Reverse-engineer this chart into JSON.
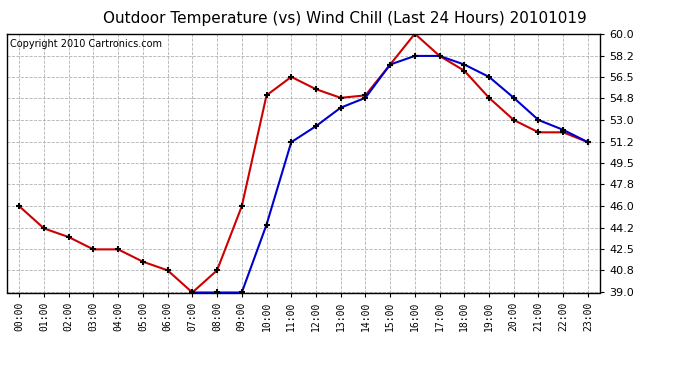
{
  "title": "Outdoor Temperature (vs) Wind Chill (Last 24 Hours) 20101019",
  "copyright": "Copyright 2010 Cartronics.com",
  "hours": [
    0,
    1,
    2,
    3,
    4,
    5,
    6,
    7,
    8,
    9,
    10,
    11,
    12,
    13,
    14,
    15,
    16,
    17,
    18,
    19,
    20,
    21,
    22,
    23
  ],
  "x_labels": [
    "00:00",
    "01:00",
    "02:00",
    "03:00",
    "04:00",
    "05:00",
    "06:00",
    "07:00",
    "08:00",
    "09:00",
    "10:00",
    "11:00",
    "12:00",
    "13:00",
    "14:00",
    "15:00",
    "16:00",
    "17:00",
    "18:00",
    "19:00",
    "20:00",
    "21:00",
    "22:00",
    "23:00"
  ],
  "temp": [
    46.0,
    44.2,
    43.5,
    42.5,
    42.5,
    41.5,
    40.8,
    39.0,
    40.8,
    46.0,
    55.0,
    56.5,
    55.5,
    54.8,
    55.0,
    57.5,
    60.0,
    58.2,
    57.0,
    54.8,
    53.0,
    52.0,
    52.0,
    51.2
  ],
  "wind_chill": [
    null,
    null,
    null,
    null,
    null,
    null,
    null,
    39.0,
    39.0,
    39.0,
    44.5,
    51.2,
    52.5,
    54.0,
    54.8,
    57.5,
    58.2,
    58.2,
    57.5,
    56.5,
    54.8,
    53.0,
    52.2,
    51.2
  ],
  "temp_color": "#cc0000",
  "wind_chill_color": "#0000cc",
  "bg_color": "#ffffff",
  "grid_color": "#aaaaaa",
  "ylim": [
    39.0,
    60.0
  ],
  "yticks": [
    39.0,
    40.8,
    42.5,
    44.2,
    46.0,
    47.8,
    49.5,
    51.2,
    53.0,
    54.8,
    56.5,
    58.2,
    60.0
  ],
  "title_fontsize": 11,
  "copyright_fontsize": 7
}
